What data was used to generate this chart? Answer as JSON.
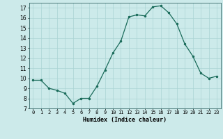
{
  "x": [
    0,
    1,
    2,
    3,
    4,
    5,
    6,
    7,
    8,
    9,
    10,
    11,
    12,
    13,
    14,
    15,
    16,
    17,
    18,
    19,
    20,
    21,
    22,
    23
  ],
  "y": [
    9.8,
    9.8,
    9.0,
    8.8,
    8.5,
    7.5,
    8.0,
    8.0,
    9.2,
    10.8,
    12.5,
    13.7,
    16.1,
    16.3,
    16.2,
    17.1,
    17.2,
    16.5,
    15.4,
    13.4,
    12.2,
    10.5,
    10.0,
    10.2
  ],
  "xlabel": "Humidex (Indice chaleur)",
  "line_color": "#1a6b5a",
  "marker_color": "#1a6b5a",
  "bg_color": "#cceaea",
  "grid_color": "#aad4d4",
  "ylim": [
    7,
    17.5
  ],
  "yticks": [
    7,
    8,
    9,
    10,
    11,
    12,
    13,
    14,
    15,
    16,
    17
  ],
  "xtick_labels": [
    "0",
    "1",
    "2",
    "3",
    "4",
    "5",
    "6",
    "7",
    "8",
    "9",
    "10",
    "11",
    "12",
    "13",
    "14",
    "15",
    "16",
    "17",
    "18",
    "19",
    "20",
    "21",
    "22",
    "23"
  ],
  "xtick_fontsize": 5.0,
  "ytick_fontsize": 5.5,
  "xlabel_fontsize": 6.0
}
